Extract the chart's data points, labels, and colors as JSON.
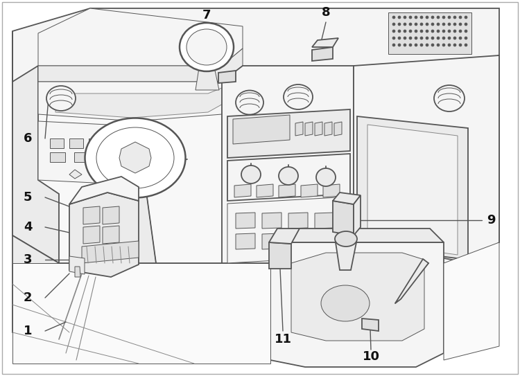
{
  "bg_color": "#ffffff",
  "line_color": "#555555",
  "light_line": "#888888",
  "fill_light": "#f5f5f5",
  "fill_mid": "#ebebeb",
  "fill_dark": "#e0e0e0",
  "lw_main": 1.3,
  "lw_thin": 0.7,
  "lw_thick": 1.8,
  "label_fs": 13,
  "label_color": "#111111",
  "figure_width": 7.5,
  "figure_height": 5.43,
  "dpi": 100
}
